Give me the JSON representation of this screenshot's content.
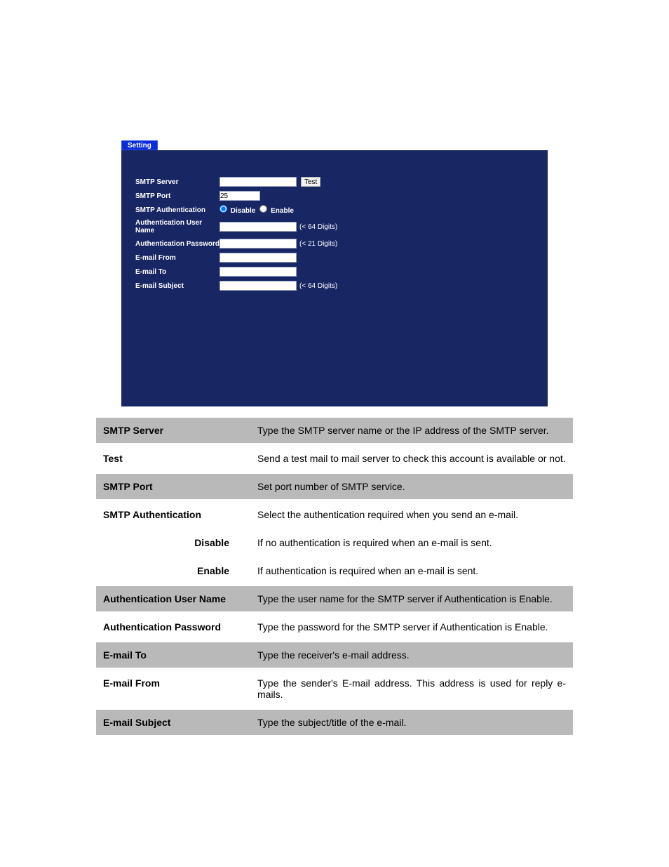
{
  "colors": {
    "panel_bg": "#182664",
    "tab_bg": "#0b2bd8",
    "table_grey": "#b9b9b9",
    "white": "#ffffff",
    "black": "#000000"
  },
  "tab": {
    "label": "Setting"
  },
  "form": {
    "smtp_server": {
      "label": "SMTP Server",
      "value": ""
    },
    "test_button": {
      "label": "Test"
    },
    "smtp_port": {
      "label": "SMTP Port",
      "value": "25"
    },
    "smtp_auth": {
      "label": "SMTP Authentication",
      "disable": "Disable",
      "enable": "Enable",
      "selected": "disable"
    },
    "auth_user": {
      "label": "Authentication User Name",
      "value": "",
      "hint": "(< 64 Digits)"
    },
    "auth_pass": {
      "label": "Authentication Password",
      "value": "",
      "hint": "(< 21 Digits)"
    },
    "email_from": {
      "label": "E-mail From",
      "value": ""
    },
    "email_to": {
      "label": "E-mail To",
      "value": ""
    },
    "email_subject": {
      "label": "E-mail Subject",
      "value": "",
      "hint": "(< 64 Digits)"
    }
  },
  "desc": {
    "rows": [
      {
        "key": "SMTP Server",
        "val": "Type the SMTP server name or the IP address of the SMTP server.",
        "band": "grey"
      },
      {
        "key": "Test",
        "val": "Send a test mail to mail server to check this account is available or not.",
        "band": "white"
      },
      {
        "key": "SMTP Port",
        "val": "Set port number of SMTP service.",
        "band": "grey"
      },
      {
        "key": "SMTP Authentication",
        "val": "Select the authentication required when you send an e-mail.",
        "band": "white"
      },
      {
        "key": "Disable",
        "indent": true,
        "val": "If no authentication is required when an e-mail is sent.",
        "band": "white"
      },
      {
        "key": "Enable",
        "indent": true,
        "val": "If authentication is required when an e-mail is sent.",
        "band": "white"
      },
      {
        "key": "Authentication User Name",
        "val": "Type the user name for the SMTP server if Authentication is Enable.",
        "band": "grey"
      },
      {
        "key": "Authentication Password",
        "val": "Type the password for the SMTP server if Authentication is Enable.",
        "band": "white"
      },
      {
        "key": "E-mail To",
        "val": "Type the receiver's e-mail address.",
        "band": "grey"
      },
      {
        "key": "E-mail From",
        "val": "Type the sender's E-mail address. This address is used for reply e-mails.",
        "band": "white"
      },
      {
        "key": "E-mail Subject",
        "val": "Type the subject/title of the e-mail.",
        "band": "grey"
      }
    ]
  }
}
